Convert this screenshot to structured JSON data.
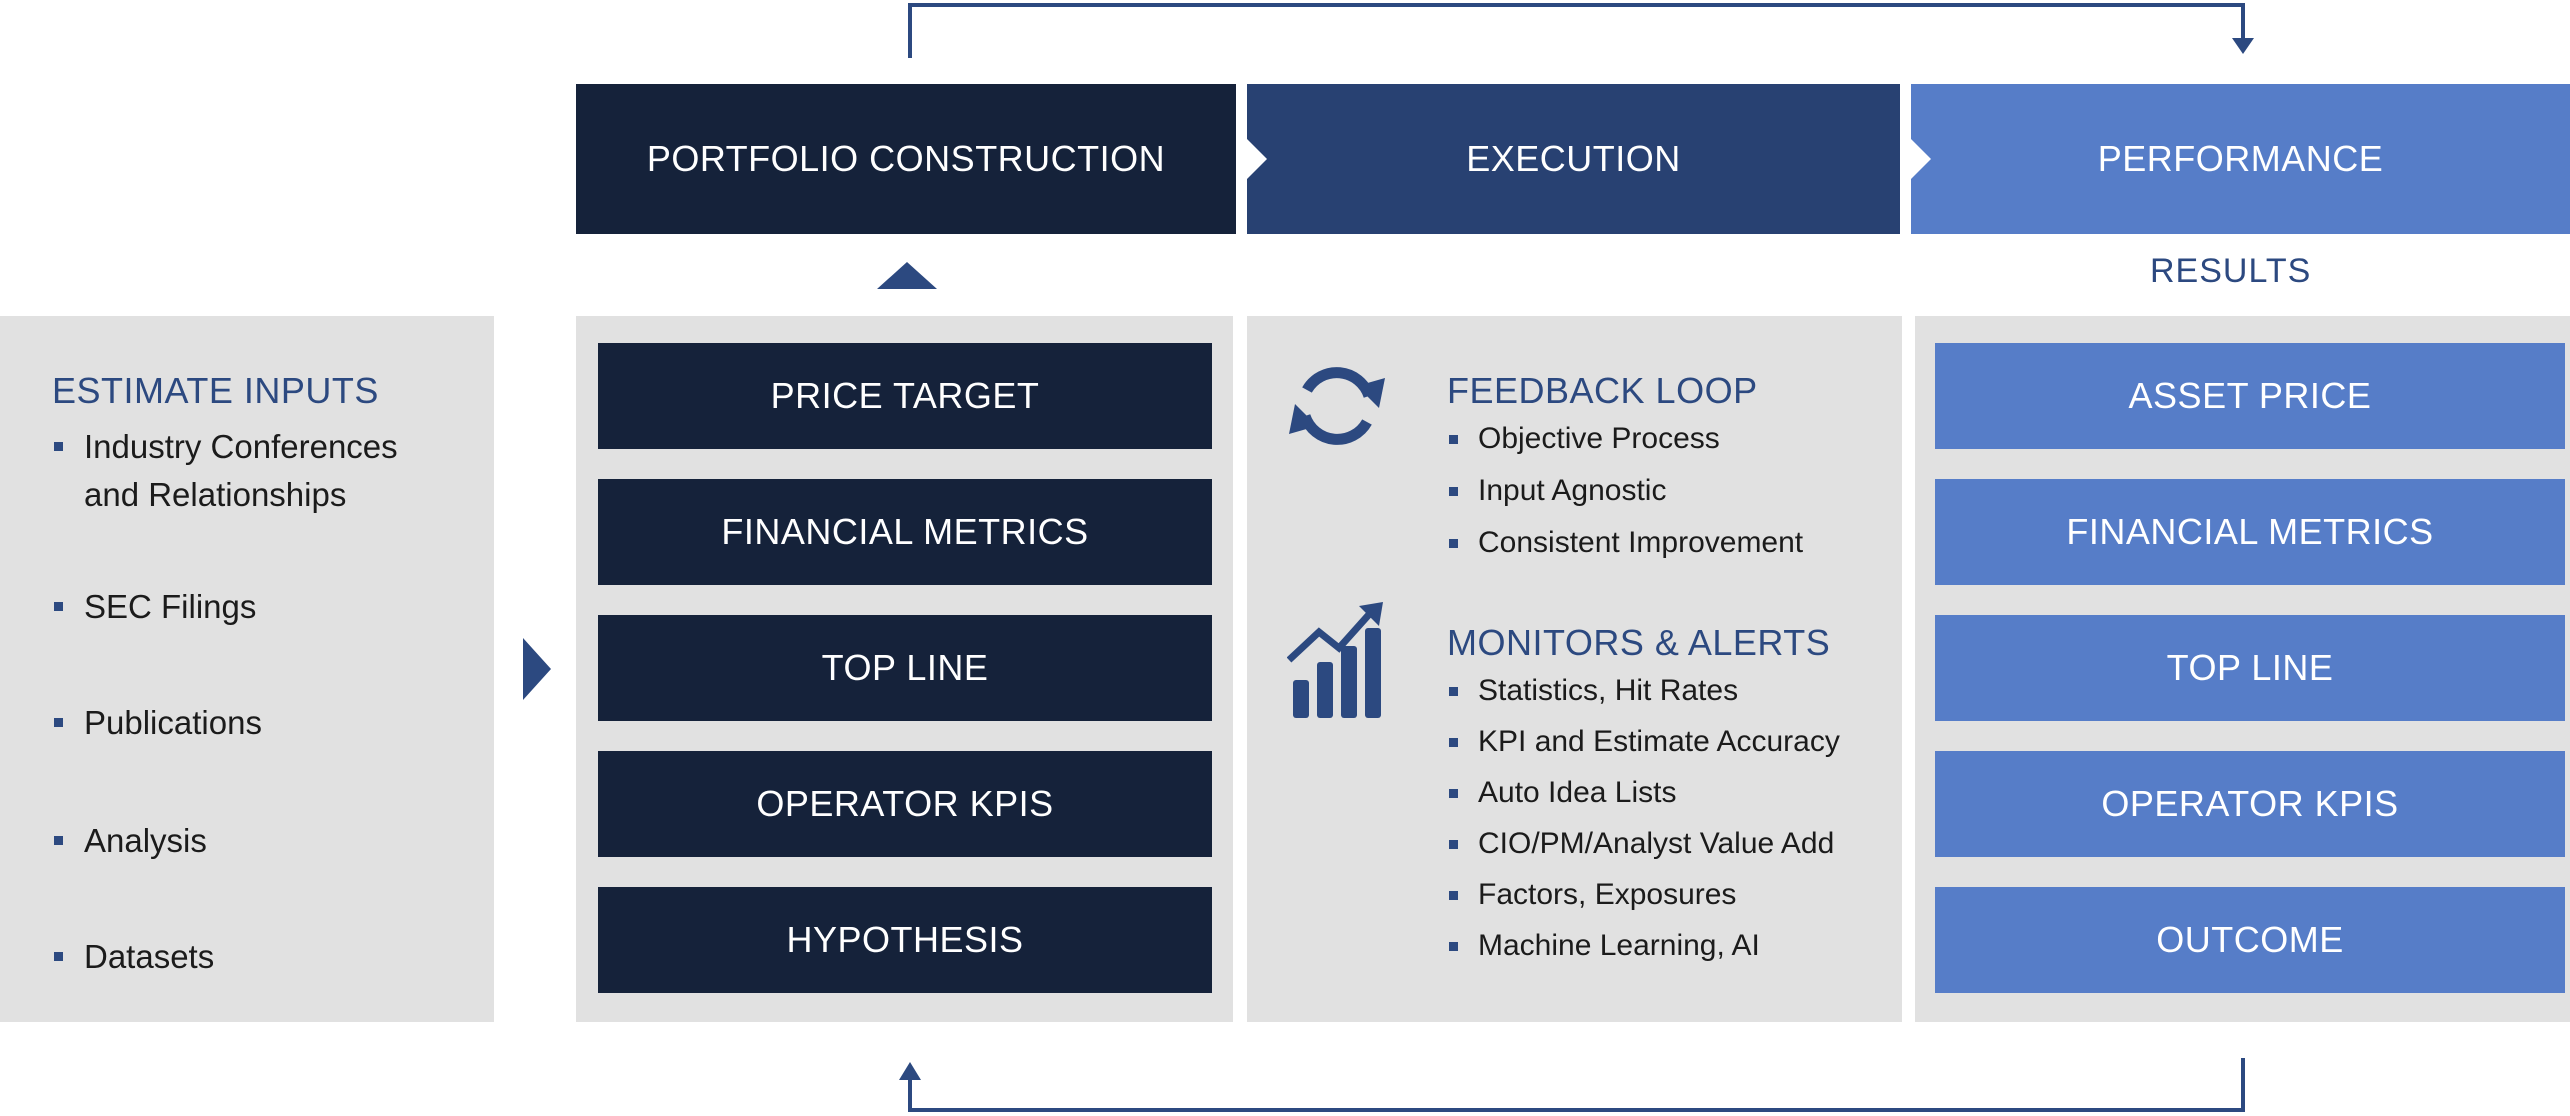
{
  "header": {
    "stages": [
      {
        "label": "PORTFOLIO CONSTRUCTION",
        "color": "#15223a"
      },
      {
        "label": "EXECUTION",
        "color": "#284172"
      },
      {
        "label": "PERFORMANCE",
        "color": "#567dc8"
      }
    ],
    "results_label": "RESULTS"
  },
  "estimate_inputs": {
    "title": "ESTIMATE INPUTS",
    "items": [
      "Industry Conferences",
      "and Relationships",
      "SEC Filings",
      "Publications",
      "Analysis",
      "Datasets"
    ]
  },
  "portfolio_construction": {
    "boxes": [
      "PRICE TARGET",
      "FINANCIAL METRICS",
      "TOP LINE",
      "OPERATOR KPIS",
      "HYPOTHESIS"
    ]
  },
  "execution": {
    "feedback": {
      "title": "FEEDBACK LOOP",
      "icon": "refresh-icon",
      "items": [
        "Objective Process",
        "Input Agnostic",
        "Consistent Improvement"
      ]
    },
    "monitors": {
      "title": "MONITORS & ALERTS",
      "icon": "growth-chart-icon",
      "items": [
        "Statistics, Hit Rates",
        "KPI and Estimate Accuracy",
        "Auto Idea Lists",
        "CIO/PM/Analyst Value Add",
        "Factors, Exposures",
        "Machine Learning, AI"
      ]
    }
  },
  "performance": {
    "boxes": [
      "ASSET PRICE",
      "FINANCIAL METRICS",
      "TOP LINE",
      "OPERATOR KPIS",
      "OUTCOME"
    ]
  },
  "colors": {
    "dark_navy": "#15223a",
    "mid_navy": "#284172",
    "accent_blue": "#567dc8",
    "title_blue": "#2c4980",
    "panel_gray": "#e1e1e1"
  }
}
